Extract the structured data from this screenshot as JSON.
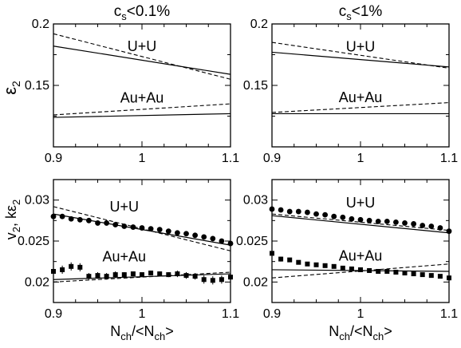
{
  "titles": {
    "left": {
      "main": "c",
      "sub": "s",
      "rest": "<0.1%"
    },
    "right": {
      "main": "c",
      "sub": "s",
      "rest": "<1%"
    }
  },
  "ylabels": {
    "top": {
      "main": "ε",
      "sub": "2"
    },
    "bottom": {
      "v": "v",
      "sub1": "2",
      "comma": ", kε",
      "sub2": "2"
    }
  },
  "xlabel": {
    "n1": "N",
    "s1": "ch",
    "mid": "/<N",
    "s2": "ch",
    "end": ">"
  },
  "chart_data": [
    {
      "id": "top-left",
      "type": "line",
      "xlim": [
        0.9,
        1.1
      ],
      "ylim": [
        0.1,
        0.2
      ],
      "xticks": [
        0.9,
        1.0,
        1.1
      ],
      "xticklabels": [
        "0.9",
        "1",
        "1.1"
      ],
      "yticks": [
        0.15,
        0.2
      ],
      "yticklabels": [
        "0.15",
        "0.2"
      ],
      "annotations": [
        {
          "text": "U+U",
          "x": 1.0,
          "y": 0.178
        },
        {
          "text": "Au+Au",
          "x": 1.0,
          "y": 0.136
        }
      ],
      "series": [
        {
          "style": "dashed",
          "x": [
            0.9,
            1.1
          ],
          "y": [
            0.192,
            0.155
          ]
        },
        {
          "style": "solid",
          "x": [
            0.9,
            1.1
          ],
          "y": [
            0.182,
            0.159
          ]
        },
        {
          "style": "dashed",
          "x": [
            0.9,
            1.1
          ],
          "y": [
            0.126,
            0.135
          ]
        },
        {
          "style": "solid",
          "x": [
            0.9,
            1.1
          ],
          "y": [
            0.124,
            0.127
          ]
        }
      ]
    },
    {
      "id": "top-right",
      "type": "line",
      "xlim": [
        0.9,
        1.1
      ],
      "ylim": [
        0.1,
        0.2
      ],
      "xticks": [
        0.9,
        1.0,
        1.1
      ],
      "xticklabels": [
        "0.9",
        "1",
        "1.1"
      ],
      "yticks": [
        0.15,
        0.2
      ],
      "yticklabels": [
        "0.15",
        "0.2"
      ],
      "annotations": [
        {
          "text": "U+U",
          "x": 1.0,
          "y": 0.1775
        },
        {
          "text": "Au+Au",
          "x": 1.0,
          "y": 0.1365
        }
      ],
      "series": [
        {
          "style": "dashed",
          "x": [
            0.9,
            1.1
          ],
          "y": [
            0.185,
            0.164
          ]
        },
        {
          "style": "solid",
          "x": [
            0.9,
            1.1
          ],
          "y": [
            0.177,
            0.165
          ]
        },
        {
          "style": "dashed",
          "x": [
            0.9,
            1.1
          ],
          "y": [
            0.128,
            0.136
          ]
        },
        {
          "style": "solid",
          "x": [
            0.9,
            1.1
          ],
          "y": [
            0.127,
            0.127
          ]
        }
      ]
    },
    {
      "id": "bottom-left",
      "type": "scatter",
      "xlim": [
        0.9,
        1.1
      ],
      "ylim": [
        0.0175,
        0.0325
      ],
      "xticks": [
        0.9,
        1.0,
        1.1
      ],
      "xticklabels": [
        "0.9",
        "1",
        "1.1"
      ],
      "yticks": [
        0.02,
        0.025,
        0.03
      ],
      "yticklabels": [
        "0.02",
        "0.025",
        "0.03"
      ],
      "annotations": [
        {
          "text": "U+U",
          "x": 0.98,
          "y": 0.0286
        },
        {
          "text": "Au+Au",
          "x": 0.98,
          "y": 0.0225
        }
      ],
      "lines": [
        {
          "style": "dashed",
          "x": [
            0.9,
            1.1
          ],
          "y": [
            0.0292,
            0.0238
          ]
        },
        {
          "style": "solid",
          "x": [
            0.9,
            1.1
          ],
          "y": [
            0.0283,
            0.0245
          ]
        },
        {
          "style": "dashed",
          "x": [
            0.9,
            1.1
          ],
          "y": [
            0.02,
            0.0212
          ]
        },
        {
          "style": "solid",
          "x": [
            0.9,
            1.1
          ],
          "y": [
            0.0203,
            0.021
          ]
        }
      ],
      "points": [
        {
          "marker": "circle",
          "x": [
            0.9,
            0.91,
            0.92,
            0.93,
            0.94,
            0.95,
            0.96,
            0.97,
            0.98,
            0.99,
            1.0,
            1.01,
            1.02,
            1.03,
            1.04,
            1.05,
            1.06,
            1.07,
            1.08,
            1.09,
            1.1
          ],
          "y": [
            0.028,
            0.028,
            0.0277,
            0.0276,
            0.0275,
            0.0272,
            0.0272,
            0.027,
            0.0268,
            0.0267,
            0.0266,
            0.0265,
            0.0264,
            0.0262,
            0.026,
            0.0259,
            0.0257,
            0.0255,
            0.0253,
            0.025,
            0.0247
          ]
        },
        {
          "marker": "square",
          "x": [
            0.9,
            0.91,
            0.92,
            0.93,
            0.94,
            0.95,
            0.96,
            0.97,
            0.98,
            0.99,
            1.0,
            1.01,
            1.02,
            1.03,
            1.04,
            1.05,
            1.06,
            1.07,
            1.08,
            1.09,
            1.1
          ],
          "y": [
            0.0213,
            0.0215,
            0.0219,
            0.0218,
            0.0207,
            0.0208,
            0.0207,
            0.0209,
            0.0209,
            0.021,
            0.0209,
            0.0211,
            0.021,
            0.0209,
            0.021,
            0.0208,
            0.0207,
            0.0203,
            0.0202,
            0.0203,
            0.0206
          ],
          "err": [
            0.0005,
            0.0005,
            0.0005,
            0.0005,
            0.0004,
            0.0004,
            0.0004,
            0.0004,
            0.0003,
            0.0003,
            0.0003,
            0.0003,
            0.0003,
            0.0003,
            0.0004,
            0.0004,
            0.0004,
            0.0005,
            0.0005,
            0.0005,
            0.0005
          ]
        }
      ]
    },
    {
      "id": "bottom-right",
      "type": "scatter",
      "xlim": [
        0.9,
        1.1
      ],
      "ylim": [
        0.0175,
        0.0325
      ],
      "xticks": [
        0.9,
        1.0,
        1.1
      ],
      "xticklabels": [
        "0.9",
        "1",
        "1.1"
      ],
      "yticks": [
        0.02,
        0.025,
        0.03
      ],
      "yticklabels": [
        "0.02",
        "0.025",
        "0.03"
      ],
      "annotations": [
        {
          "text": "U+U",
          "x": 1.0,
          "y": 0.0291
        },
        {
          "text": "Au+Au",
          "x": 1.0,
          "y": 0.0226
        }
      ],
      "lines": [
        {
          "style": "solid",
          "x": [
            0.9,
            1.1
          ],
          "y": [
            0.0281,
            0.026
          ]
        },
        {
          "style": "dashed",
          "x": [
            0.9,
            1.1
          ],
          "y": [
            0.0283,
            0.0263
          ]
        },
        {
          "style": "solid",
          "x": [
            0.9,
            1.1
          ],
          "y": [
            0.0215,
            0.0213
          ]
        },
        {
          "style": "dashed",
          "x": [
            0.9,
            1.1
          ],
          "y": [
            0.0205,
            0.0222
          ]
        }
      ],
      "points": [
        {
          "marker": "circle",
          "x": [
            0.9,
            0.91,
            0.92,
            0.93,
            0.94,
            0.95,
            0.96,
            0.97,
            0.98,
            0.99,
            1.0,
            1.01,
            1.02,
            1.03,
            1.04,
            1.05,
            1.06,
            1.07,
            1.08,
            1.09,
            1.1
          ],
          "y": [
            0.0289,
            0.0288,
            0.0286,
            0.0286,
            0.0285,
            0.0283,
            0.0282,
            0.028,
            0.0279,
            0.0277,
            0.0276,
            0.0275,
            0.0274,
            0.0274,
            0.0273,
            0.0272,
            0.0271,
            0.0269,
            0.0268,
            0.0266,
            0.0262
          ]
        },
        {
          "marker": "square",
          "x": [
            0.9,
            0.91,
            0.92,
            0.93,
            0.94,
            0.95,
            0.96,
            0.97,
            0.98,
            0.99,
            1.0,
            1.01,
            1.02,
            1.03,
            1.04,
            1.05,
            1.06,
            1.07,
            1.08,
            1.09,
            1.1
          ],
          "y": [
            0.0235,
            0.0228,
            0.0227,
            0.0224,
            0.0222,
            0.0221,
            0.022,
            0.0219,
            0.0217,
            0.0216,
            0.0215,
            0.0214,
            0.0213,
            0.0213,
            0.0212,
            0.0211,
            0.021,
            0.0209,
            0.0208,
            0.0207,
            0.0205
          ],
          "err": [
            0.0003,
            0.0003,
            0.0002,
            0.0002,
            0.0002,
            0.0002,
            0.0002,
            0.0002,
            0.0002,
            0.0002,
            0.0002,
            0.0002,
            0.0002,
            0.0002,
            0.0002,
            0.0002,
            0.0002,
            0.0002,
            0.0002,
            0.0002,
            0.0003
          ]
        }
      ]
    }
  ]
}
